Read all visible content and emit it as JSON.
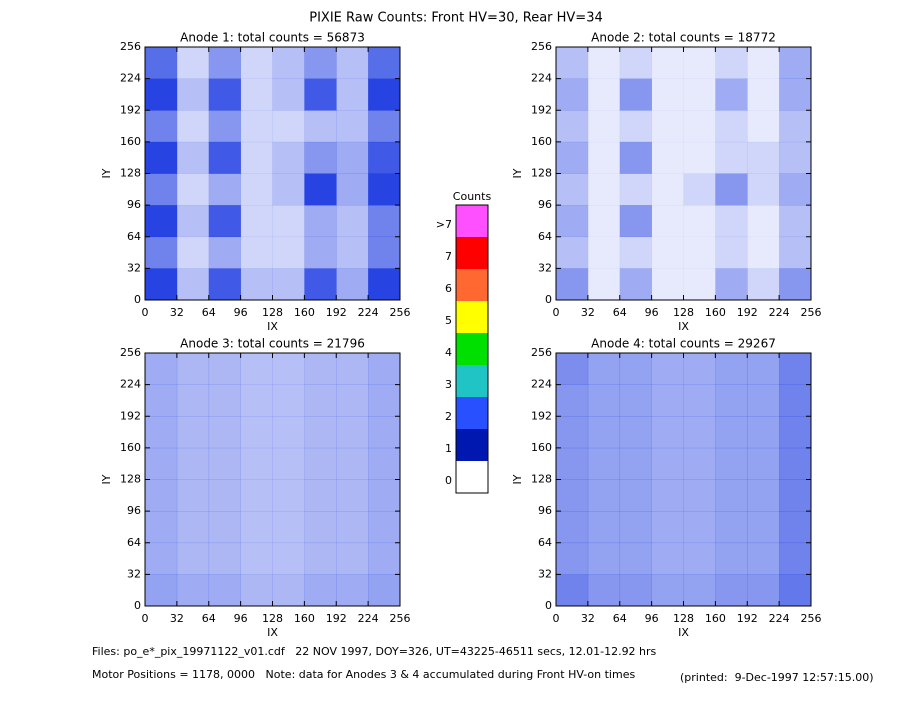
{
  "title": "PIXIE Raw Counts:  Front HV=30, Rear HV=34",
  "chart_data": [
    {
      "type": "heatmap",
      "title": "Anode 1: total counts = 56873",
      "xlabel": "IX",
      "ylabel": "IY",
      "xlim": [
        0,
        256
      ],
      "ylim": [
        0,
        256
      ],
      "xticks": [
        0,
        32,
        64,
        96,
        128,
        160,
        192,
        224,
        256
      ],
      "yticks": [
        0,
        32,
        64,
        96,
        128,
        160,
        192,
        224,
        256
      ],
      "color": "#1030e0",
      "z": [
        [
          0.7,
          0.2,
          0.5,
          0.2,
          0.3,
          0.5,
          0.3,
          0.7
        ],
        [
          0.9,
          0.3,
          0.8,
          0.2,
          0.3,
          0.8,
          0.3,
          0.9
        ],
        [
          0.6,
          0.2,
          0.5,
          0.2,
          0.2,
          0.3,
          0.3,
          0.6
        ],
        [
          0.9,
          0.3,
          0.8,
          0.2,
          0.3,
          0.5,
          0.4,
          0.8
        ],
        [
          0.6,
          0.2,
          0.4,
          0.2,
          0.3,
          0.9,
          0.4,
          0.9
        ],
        [
          0.9,
          0.3,
          0.8,
          0.2,
          0.2,
          0.4,
          0.3,
          0.6
        ],
        [
          0.6,
          0.2,
          0.4,
          0.2,
          0.2,
          0.4,
          0.3,
          0.6
        ],
        [
          0.9,
          0.3,
          0.8,
          0.3,
          0.3,
          0.8,
          0.4,
          0.9
        ]
      ]
    },
    {
      "type": "heatmap",
      "title": "Anode 2: total counts = 18772",
      "xlabel": "IX",
      "ylabel": "IY",
      "xlim": [
        0,
        256
      ],
      "ylim": [
        0,
        256
      ],
      "xticks": [
        0,
        32,
        64,
        96,
        128,
        160,
        192,
        224,
        256
      ],
      "yticks": [
        0,
        32,
        64,
        96,
        128,
        160,
        192,
        224,
        256
      ],
      "color": "#1030e0",
      "z": [
        [
          0.3,
          0.1,
          0.2,
          0.1,
          0.1,
          0.2,
          0.1,
          0.4
        ],
        [
          0.4,
          0.1,
          0.5,
          0.1,
          0.1,
          0.4,
          0.1,
          0.4
        ],
        [
          0.3,
          0.1,
          0.2,
          0.1,
          0.1,
          0.2,
          0.1,
          0.3
        ],
        [
          0.4,
          0.1,
          0.5,
          0.1,
          0.1,
          0.2,
          0.2,
          0.3
        ],
        [
          0.3,
          0.1,
          0.2,
          0.1,
          0.2,
          0.5,
          0.2,
          0.4
        ],
        [
          0.4,
          0.1,
          0.5,
          0.1,
          0.1,
          0.2,
          0.1,
          0.3
        ],
        [
          0.3,
          0.1,
          0.2,
          0.1,
          0.1,
          0.2,
          0.1,
          0.3
        ],
        [
          0.5,
          0.1,
          0.4,
          0.1,
          0.1,
          0.4,
          0.2,
          0.5
        ]
      ]
    },
    {
      "type": "heatmap",
      "title": "Anode 3: total counts = 21796",
      "xlabel": "IX",
      "ylabel": "IY",
      "xlim": [
        0,
        256
      ],
      "ylim": [
        0,
        256
      ],
      "xticks": [
        0,
        32,
        64,
        96,
        128,
        160,
        192,
        224,
        256
      ],
      "yticks": [
        0,
        32,
        64,
        96,
        128,
        160,
        192,
        224,
        256
      ],
      "color": "#1030e0",
      "z": [
        [
          0.4,
          0.35,
          0.35,
          0.3,
          0.3,
          0.35,
          0.35,
          0.4
        ],
        [
          0.4,
          0.35,
          0.35,
          0.3,
          0.3,
          0.35,
          0.35,
          0.4
        ],
        [
          0.4,
          0.35,
          0.35,
          0.3,
          0.3,
          0.35,
          0.35,
          0.4
        ],
        [
          0.4,
          0.35,
          0.35,
          0.3,
          0.3,
          0.35,
          0.35,
          0.4
        ],
        [
          0.4,
          0.35,
          0.35,
          0.3,
          0.3,
          0.35,
          0.35,
          0.4
        ],
        [
          0.4,
          0.35,
          0.35,
          0.3,
          0.3,
          0.35,
          0.35,
          0.4
        ],
        [
          0.4,
          0.35,
          0.35,
          0.3,
          0.3,
          0.35,
          0.35,
          0.4
        ],
        [
          0.45,
          0.4,
          0.4,
          0.35,
          0.35,
          0.4,
          0.4,
          0.45
        ]
      ]
    },
    {
      "type": "heatmap",
      "title": "Anode 4: total counts = 29267",
      "xlabel": "IX",
      "ylabel": "IY",
      "xlim": [
        0,
        256
      ],
      "ylim": [
        0,
        256
      ],
      "xticks": [
        0,
        32,
        64,
        96,
        128,
        160,
        192,
        224,
        256
      ],
      "yticks": [
        0,
        32,
        64,
        96,
        128,
        160,
        192,
        224,
        256
      ],
      "color": "#1030e0",
      "z": [
        [
          0.55,
          0.45,
          0.45,
          0.4,
          0.4,
          0.45,
          0.45,
          0.6
        ],
        [
          0.5,
          0.45,
          0.45,
          0.4,
          0.4,
          0.45,
          0.45,
          0.6
        ],
        [
          0.5,
          0.45,
          0.45,
          0.4,
          0.4,
          0.45,
          0.45,
          0.6
        ],
        [
          0.5,
          0.45,
          0.45,
          0.4,
          0.4,
          0.45,
          0.45,
          0.6
        ],
        [
          0.5,
          0.45,
          0.45,
          0.4,
          0.4,
          0.45,
          0.45,
          0.6
        ],
        [
          0.5,
          0.45,
          0.45,
          0.4,
          0.4,
          0.45,
          0.45,
          0.6
        ],
        [
          0.5,
          0.45,
          0.45,
          0.4,
          0.4,
          0.45,
          0.45,
          0.6
        ],
        [
          0.6,
          0.5,
          0.5,
          0.45,
          0.45,
          0.5,
          0.5,
          0.65
        ]
      ]
    }
  ],
  "colorbar": {
    "title": "Counts",
    "ticks": [
      0,
      1,
      2,
      3,
      4,
      5,
      6,
      7,
      {
        "value": 8,
        "label": ">7"
      }
    ],
    "colors": [
      "#ffffff",
      "#0018b0",
      "#2850ff",
      "#20c4c4",
      "#00e000",
      "#ffff00",
      "#ff6830",
      "#ff0000",
      "#ff50ff"
    ]
  },
  "footer": [
    "Files: po_e*_pix_19971122_v01.cdf   22 NOV 1997, DOY=326, UT=43225-46511 secs, 12.01-12.92 hrs",
    "Motor Positions = 1178, 0000   Note: data for Anodes 3 & 4 accumulated during Front HV-on times",
    "(printed:  9-Dec-1997 12:57:15.00)"
  ]
}
